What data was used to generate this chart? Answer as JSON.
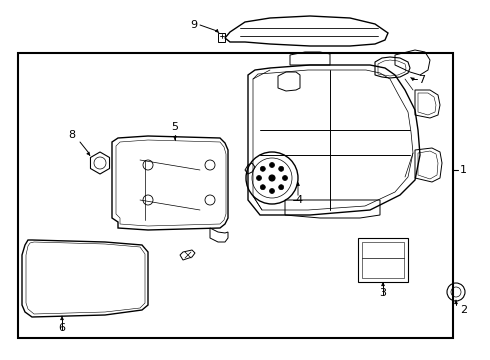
{
  "background_color": "#ffffff",
  "line_color": "#000000",
  "text_color": "#000000",
  "fig_width": 4.9,
  "fig_height": 3.6,
  "dpi": 100,
  "font_size": 8
}
